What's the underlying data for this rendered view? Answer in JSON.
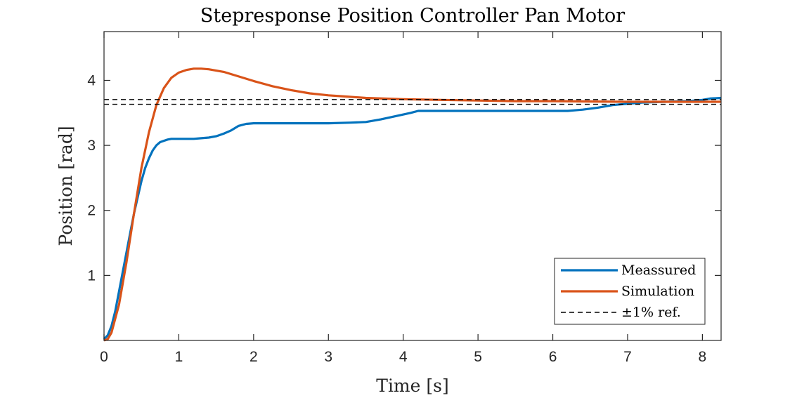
{
  "chart_data": {
    "type": "line",
    "title": "Stepresponse Position Controller Pan Motor",
    "xlabel": "Time [s]",
    "ylabel": "Position [rad]",
    "xlim": [
      0,
      8.25
    ],
    "ylim": [
      0,
      4.75
    ],
    "xticks": [
      0,
      1,
      2,
      3,
      4,
      5,
      6,
      7,
      8
    ],
    "yticks": [
      1,
      2,
      3,
      4
    ],
    "grid": false,
    "legend_position": "bottom-right",
    "series": [
      {
        "name": "Meassured",
        "color": "#0072BD",
        "x": [
          0,
          0.05,
          0.1,
          0.15,
          0.2,
          0.25,
          0.3,
          0.35,
          0.4,
          0.45,
          0.5,
          0.55,
          0.6,
          0.65,
          0.7,
          0.75,
          0.8,
          0.85,
          0.9,
          0.95,
          1.0,
          1.1,
          1.2,
          1.3,
          1.4,
          1.5,
          1.6,
          1.7,
          1.8,
          1.9,
          2.0,
          2.5,
          3.0,
          3.3,
          3.5,
          3.7,
          3.9,
          4.1,
          4.2,
          4.5,
          5.0,
          5.5,
          6.0,
          6.2,
          6.4,
          6.6,
          6.8,
          7.0,
          7.2,
          7.5,
          7.8,
          8.0,
          8.1,
          8.25
        ],
        "y": [
          0.02,
          0.08,
          0.22,
          0.45,
          0.75,
          1.05,
          1.35,
          1.65,
          1.95,
          2.2,
          2.45,
          2.65,
          2.8,
          2.92,
          3.0,
          3.05,
          3.07,
          3.09,
          3.1,
          3.1,
          3.1,
          3.1,
          3.1,
          3.11,
          3.12,
          3.14,
          3.18,
          3.23,
          3.3,
          3.33,
          3.34,
          3.34,
          3.34,
          3.35,
          3.36,
          3.4,
          3.45,
          3.5,
          3.53,
          3.53,
          3.53,
          3.53,
          3.53,
          3.53,
          3.55,
          3.58,
          3.62,
          3.64,
          3.66,
          3.67,
          3.68,
          3.7,
          3.72,
          3.73
        ]
      },
      {
        "name": "Simulation",
        "color": "#D95319",
        "x": [
          0,
          0.05,
          0.1,
          0.2,
          0.3,
          0.4,
          0.5,
          0.6,
          0.7,
          0.8,
          0.9,
          1.0,
          1.1,
          1.2,
          1.3,
          1.4,
          1.6,
          1.8,
          2.0,
          2.25,
          2.5,
          2.75,
          3.0,
          3.25,
          3.5,
          4.0,
          4.5,
          5.0,
          5.5,
          6.0,
          6.5,
          7.0,
          7.5,
          8.0,
          8.25
        ],
        "y": [
          0,
          0.02,
          0.12,
          0.55,
          1.2,
          1.95,
          2.65,
          3.2,
          3.62,
          3.88,
          4.04,
          4.12,
          4.16,
          4.18,
          4.18,
          4.17,
          4.13,
          4.06,
          3.99,
          3.91,
          3.85,
          3.8,
          3.77,
          3.75,
          3.73,
          3.71,
          3.7,
          3.69,
          3.68,
          3.68,
          3.675,
          3.67,
          3.67,
          3.67,
          3.67
        ]
      },
      {
        "name": "±1% ref.",
        "color": "#000000",
        "style": "dashed",
        "x": [
          0,
          8.25
        ],
        "y": [
          3.705,
          3.705
        ]
      },
      {
        "color": "#000000",
        "style": "dashed",
        "x": [
          0,
          8.25
        ],
        "y": [
          3.632,
          3.632
        ]
      }
    ]
  }
}
